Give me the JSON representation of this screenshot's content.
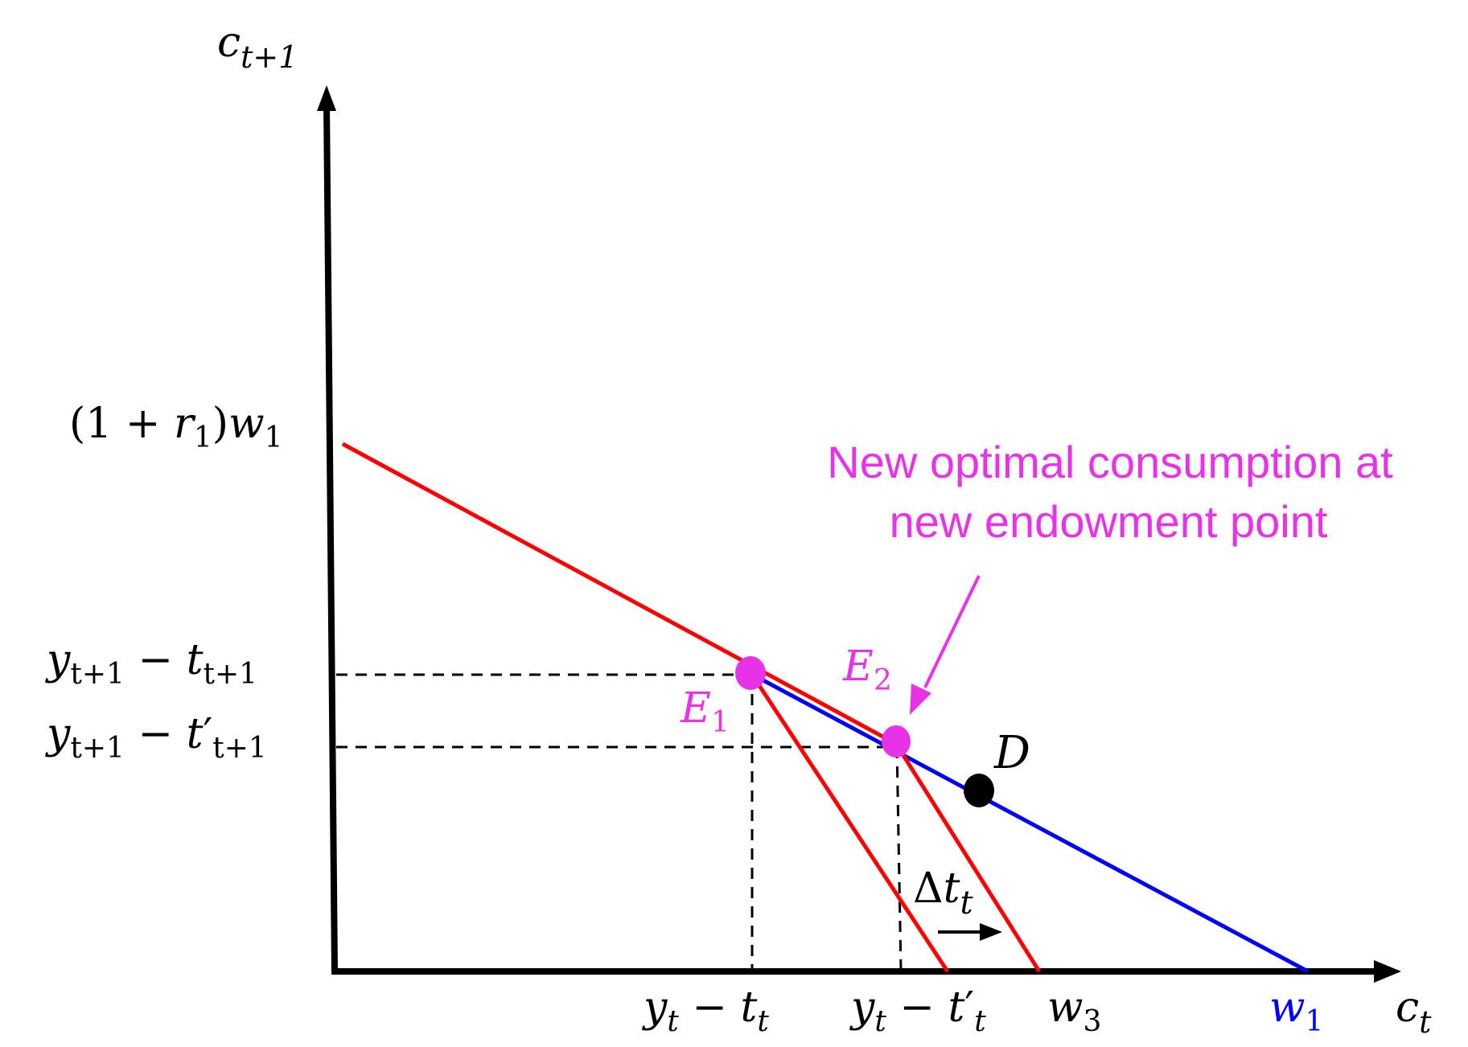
{
  "colors": {
    "axis": "#000000",
    "budget_line_red": "#ff0000",
    "budget_line_blue": "#0000ff",
    "highlight": "#e832e8",
    "guide": "#000000"
  },
  "axes": {
    "y_label": {
      "base": "c",
      "sub": "t+1"
    },
    "x_label": {
      "base": "c",
      "sub": "t"
    }
  },
  "y_ticks": {
    "intercept": {
      "open": "(1 + ",
      "r": "r",
      "r_sub": "1",
      "close": ")",
      "w": "w",
      "w_sub": "1"
    },
    "level1": {
      "y": "y",
      "y_sub": "t+1",
      "minus": " − ",
      "t": "t",
      "t_sub": "t+1"
    },
    "level2": {
      "y": "y",
      "y_sub": "t+1",
      "minus": " − ",
      "t": "t",
      "prime": "′",
      "t_sub": "t+1"
    }
  },
  "x_ticks": {
    "level1": {
      "y": "y",
      "y_sub": "t",
      "minus": " − ",
      "t": "t",
      "t_sub": "t"
    },
    "level2": {
      "y": "y",
      "y_sub": "t",
      "minus": " − ",
      "t": "t",
      "prime": "′",
      "t_sub": "t"
    },
    "w3": {
      "base": "w",
      "sub": "3"
    },
    "w1": {
      "base": "w",
      "sub": "1"
    }
  },
  "points": {
    "E1": {
      "base": "E",
      "sub": "1"
    },
    "E2": {
      "base": "E",
      "sub": "2"
    },
    "D": {
      "label": "D"
    }
  },
  "shift": {
    "delta": "Δ",
    "t": "t",
    "sub": "t"
  },
  "annotation": {
    "line1": "New optimal consumption at",
    "line2": "new endowment point"
  }
}
